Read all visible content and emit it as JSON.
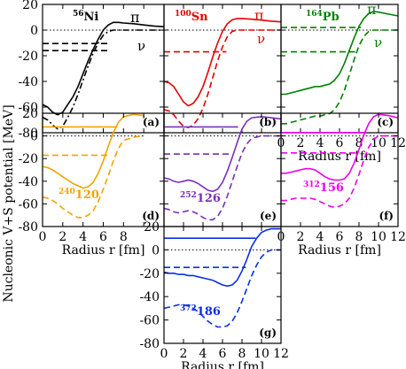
{
  "chart_data": {
    "type": "line",
    "shared_ylabel": "Nucleonic V+S potential [MeV]",
    "xlabel": "Radius r [fm]",
    "x_ticks_short": [
      "0",
      "2",
      "4",
      "6",
      "8"
    ],
    "x_ticks_full": [
      "0",
      "2",
      "4",
      "6",
      "8",
      "10",
      "12"
    ],
    "y_ticks": [
      "20",
      "0",
      "-20",
      "-40",
      "-60",
      "-80"
    ],
    "xlim": [
      0,
      12
    ],
    "ylim": [
      -80,
      20
    ],
    "panels": [
      {
        "id": "a",
        "letter": "(a)",
        "mass": "56",
        "element": "Ni",
        "neutron_label": "ν",
        "proton_label": "π",
        "color": "#000000",
        "series": [
          {
            "kind": "proton-potential",
            "style": "solid",
            "x": [
              0,
              0.5,
              1,
              1.5,
              2,
              2.5,
              3,
              3.5,
              4,
              4.5,
              5,
              5.5,
              6,
              6.5,
              7,
              7.5,
              8,
              9,
              10,
              11,
              12
            ],
            "y": [
              -58,
              -60,
              -64,
              -66,
              -64,
              -58,
              -52,
              -44,
              -34,
              -24,
              -15,
              -7,
              0,
              4,
              6,
              6,
              5.5,
              5,
              4,
              3.2,
              2.6
            ]
          },
          {
            "kind": "neutron-potential",
            "style": "dash-dot",
            "x": [
              0,
              0.5,
              1,
              1.5,
              2,
              2.5,
              3,
              3.5,
              4,
              4.5,
              5,
              5.5,
              6,
              6.5,
              7,
              7.5,
              8,
              9,
              10,
              11,
              12
            ],
            "y": [
              -68,
              -70,
              -74,
              -77,
              -75,
              -68,
              -60,
              -50,
              -39,
              -28,
              -18,
              -10,
              -4,
              -1,
              0,
              0,
              0,
              0,
              0,
              0,
              0
            ]
          },
          {
            "kind": "proton-level",
            "style": "dash",
            "x": [
              0,
              6.4
            ],
            "y": [
              -16,
              -16
            ]
          },
          {
            "kind": "neutron-level",
            "style": "dash",
            "x": [
              0,
              6.5
            ],
            "y": [
              -10.5,
              -10.5
            ]
          }
        ]
      },
      {
        "id": "b",
        "letter": "(b)",
        "mass": "100",
        "element": "Sn",
        "neutron_label": "ν",
        "proton_label": "π",
        "color": "#e60000",
        "series": [
          {
            "kind": "proton-potential",
            "style": "solid",
            "x": [
              0,
              0.5,
              1,
              1.5,
              2,
              2.5,
              3,
              3.5,
              4,
              4.5,
              5,
              5.5,
              6,
              6.5,
              7,
              7.5,
              8,
              9,
              10,
              11,
              12
            ],
            "y": [
              -40,
              -41,
              -44,
              -50,
              -56,
              -59,
              -57,
              -52,
              -44,
              -33,
              -21,
              -10,
              -1,
              5,
              8,
              9,
              9,
              8.5,
              7.8,
              7,
              6.4
            ]
          },
          {
            "kind": "neutron-potential",
            "style": "dash",
            "x": [
              0,
              0.5,
              1,
              1.5,
              2,
              2.5,
              3,
              3.5,
              4,
              4.5,
              5,
              5.5,
              6,
              6.5,
              7,
              7.5,
              8,
              9,
              10,
              11,
              12
            ],
            "y": [
              -62,
              -63,
              -66,
              -71,
              -75,
              -76,
              -74,
              -69,
              -61,
              -50,
              -37,
              -24,
              -13,
              -5,
              -1,
              0,
              0,
              0,
              0,
              0,
              0
            ]
          },
          {
            "kind": "proton-level",
            "style": "dash",
            "x": [
              0,
              6.4
            ],
            "y": [
              -17,
              -17
            ]
          }
        ]
      },
      {
        "id": "c",
        "letter": "(c)",
        "mass": "164",
        "element": "Pb",
        "neutron_label": "ν",
        "proton_label": "π",
        "color": "#008000",
        "series": [
          {
            "kind": "proton-potential",
            "style": "solid",
            "x": [
              0,
              0.5,
              1,
              1.5,
              2,
              2.5,
              3,
              3.5,
              4,
              4.5,
              5,
              5.5,
              6,
              6.5,
              7,
              7.5,
              8,
              8.5,
              9,
              9.5,
              10,
              11,
              12
            ],
            "y": [
              -50,
              -50,
              -49,
              -48,
              -47,
              -46,
              -45,
              -44,
              -44,
              -43,
              -42,
              -39,
              -34,
              -26,
              -16,
              -6,
              3,
              9,
              13,
              14.5,
              14,
              12.5,
              11
            ]
          },
          {
            "kind": "neutron-potential",
            "style": "dash",
            "x": [
              0,
              0.5,
              1,
              1.5,
              2,
              2.5,
              3,
              3.5,
              4,
              4.5,
              5,
              5.5,
              6,
              6.5,
              7,
              7.5,
              8,
              8.5,
              9,
              9.5,
              10,
              11,
              12
            ],
            "y": [
              -73,
              -73,
              -72,
              -71,
              -70,
              -69,
              -68,
              -67,
              -67,
              -66,
              -65,
              -62,
              -56,
              -47,
              -35,
              -23,
              -12,
              -5,
              -1,
              0,
              0,
              0,
              0
            ]
          },
          {
            "kind": "proton-level",
            "style": "dash",
            "x": [
              0,
              8.2
            ],
            "y": [
              2,
              2
            ]
          },
          {
            "kind": "neutron-level",
            "style": "dash",
            "x": [
              0,
              7.6
            ],
            "y": [
              -17,
              -17
            ]
          }
        ]
      },
      {
        "id": "d",
        "letter": "(d)",
        "mass": "240",
        "element": "120",
        "color": "#f5a300",
        "series": [
          {
            "kind": "proton-potential",
            "style": "solid",
            "x": [
              0,
              0.5,
              1,
              1.5,
              2,
              2.5,
              3,
              3.5,
              4,
              4.5,
              5,
              5.5,
              6,
              6.5,
              7,
              7.5,
              8,
              9,
              10,
              11,
              12
            ],
            "y": [
              -27,
              -28,
              -30,
              -33,
              -36,
              -39,
              -42,
              -44,
              -46,
              -45,
              -41,
              -33,
              -22,
              -9,
              3,
              12,
              17,
              19,
              18,
              16.5,
              15
            ]
          },
          {
            "kind": "neutron-potential",
            "style": "dash",
            "x": [
              0,
              0.5,
              1,
              1.5,
              2,
              2.5,
              3,
              3.5,
              4,
              4.5,
              5,
              5.5,
              6,
              6.5,
              7,
              7.5,
              8,
              9,
              10,
              11,
              12
            ],
            "y": [
              -54,
              -55,
              -57,
              -60,
              -64,
              -67,
              -70,
              -72,
              -72,
              -70,
              -66,
              -58,
              -47,
              -35,
              -22,
              -11,
              -4,
              -1,
              0,
              0,
              0
            ]
          },
          {
            "kind": "proton-level",
            "style": "solid",
            "x": [
              0,
              7.4
            ],
            "y": [
              8,
              8
            ]
          },
          {
            "kind": "neutron-level",
            "style": "dash",
            "x": [
              0,
              6.5
            ],
            "y": [
              -17,
              -17
            ]
          }
        ]
      },
      {
        "id": "e",
        "letter": "(e)",
        "mass": "252",
        "element": "126",
        "color": "#7a2fb8",
        "series": [
          {
            "kind": "proton-potential",
            "style": "solid",
            "x": [
              0,
              0.5,
              1,
              1.5,
              2,
              2.5,
              3,
              3.5,
              4,
              4.5,
              5,
              5.5,
              6,
              6.5,
              7,
              7.5,
              8,
              8.5,
              9,
              10,
              11,
              12
            ],
            "y": [
              -37,
              -38,
              -40,
              -41,
              -40,
              -39,
              -40,
              -42,
              -45,
              -48,
              -49,
              -47,
              -41,
              -31,
              -19,
              -6,
              6,
              13,
              16,
              17,
              16,
              15
            ]
          },
          {
            "kind": "neutron-potential",
            "style": "dash",
            "x": [
              0,
              0.5,
              1,
              1.5,
              2,
              2.5,
              3,
              3.5,
              4,
              4.5,
              5,
              5.5,
              6,
              6.5,
              7,
              7.5,
              8,
              8.5,
              9,
              10,
              11,
              12
            ],
            "y": [
              -64,
              -65,
              -67,
              -68,
              -67,
              -66,
              -67,
              -69,
              -72,
              -74,
              -74,
              -71,
              -64,
              -53,
              -40,
              -27,
              -15,
              -7,
              -2,
              0,
              0,
              0
            ]
          },
          {
            "kind": "proton-level",
            "style": "solid",
            "x": [
              0,
              7.6
            ],
            "y": [
              8,
              8
            ]
          },
          {
            "kind": "neutron-level",
            "style": "dash",
            "x": [
              0,
              6.9
            ],
            "y": [
              -16,
              -16
            ]
          }
        ]
      },
      {
        "id": "f",
        "letter": "(f)",
        "mass": "312",
        "element": "156",
        "color": "#ee00ee",
        "series": [
          {
            "kind": "proton-potential",
            "style": "solid",
            "x": [
              0,
              0.5,
              1,
              1.5,
              2,
              2.5,
              3,
              3.5,
              4,
              4.5,
              5,
              5.5,
              6,
              6.5,
              7,
              7.5,
              8,
              8.5,
              9,
              9.5,
              10,
              11,
              12
            ],
            "y": [
              -33,
              -33,
              -32,
              -31,
              -30,
              -29,
              -29,
              -30,
              -33,
              -36,
              -38,
              -39,
              -39,
              -38,
              -33,
              -24,
              -12,
              1,
              11,
              17,
              19,
              18,
              16
            ]
          },
          {
            "kind": "neutron-potential",
            "style": "dash",
            "x": [
              0,
              0.5,
              1,
              1.5,
              2,
              2.5,
              3,
              3.5,
              4,
              4.5,
              5,
              5.5,
              6,
              6.5,
              7,
              7.5,
              8,
              8.5,
              9,
              9.5,
              10,
              11,
              12
            ],
            "y": [
              -57,
              -57,
              -56,
              -55,
              -55,
              -55,
              -55,
              -56,
              -58,
              -60,
              -62,
              -63,
              -62,
              -60,
              -55,
              -46,
              -34,
              -21,
              -10,
              -3,
              0,
              0,
              0
            ]
          },
          {
            "kind": "proton-level",
            "style": "solid",
            "x": [
              0,
              8.6
            ],
            "y": [
              3,
              3
            ]
          },
          {
            "kind": "neutron-level",
            "style": "dash",
            "x": [
              0,
              7.9
            ],
            "y": [
              -15,
              -15
            ]
          }
        ]
      },
      {
        "id": "g",
        "letter": "(g)",
        "mass": "372",
        "element": "186",
        "color": "#0a2ee6",
        "series": [
          {
            "kind": "proton-potential",
            "style": "solid",
            "x": [
              0,
              0.5,
              1,
              1.5,
              2,
              2.5,
              3,
              3.5,
              4,
              4.5,
              5,
              5.5,
              6,
              6.5,
              7,
              7.5,
              8,
              8.5,
              9,
              9.5,
              10,
              10.5,
              11,
              11.5,
              12
            ],
            "y": [
              -19,
              -20,
              -20,
              -21,
              -21,
              -22,
              -22,
              -23,
              -24,
              -25,
              -26,
              -28,
              -30,
              -31,
              -30,
              -26,
              -18,
              -8,
              3,
              10,
              15,
              17,
              18,
              18,
              18
            ]
          },
          {
            "kind": "neutron-potential",
            "style": "dash",
            "x": [
              0,
              0.5,
              1,
              1.5,
              2,
              2.5,
              3,
              3.5,
              4,
              4.5,
              5,
              5.5,
              6,
              6.5,
              7,
              7.5,
              8,
              8.5,
              9,
              9.5,
              10,
              10.5,
              11,
              11.5,
              12
            ],
            "y": [
              -50,
              -49,
              -48,
              -47,
              -47,
              -48,
              -50,
              -53,
              -57,
              -61,
              -64,
              -66,
              -66,
              -65,
              -61,
              -54,
              -44,
              -33,
              -22,
              -13,
              -6,
              -2,
              0,
              0,
              0
            ]
          },
          {
            "kind": "proton-level",
            "style": "solid",
            "x": [
              0,
              9.4
            ],
            "y": [
              10,
              10
            ]
          },
          {
            "kind": "neutron-level",
            "style": "dash",
            "x": [
              0,
              8.4
            ],
            "y": [
              -15,
              -15
            ]
          }
        ]
      }
    ]
  }
}
